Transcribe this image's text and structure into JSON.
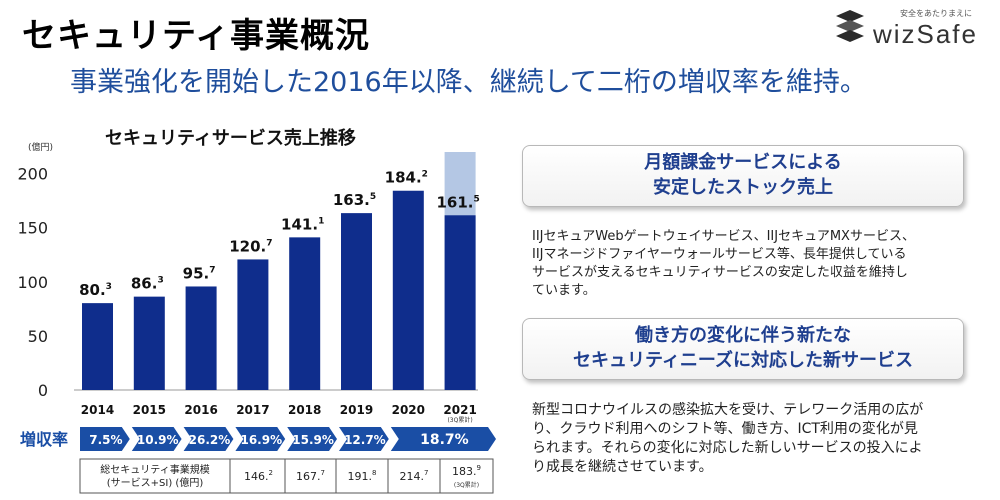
{
  "page": {
    "title": "セキュリティ事業概況",
    "subtitle": "事業強化を開始した2016年以降、継続して二桁の増収率を維持。"
  },
  "logo": {
    "tagline": "安全をあたりまえに",
    "name": "wizSafe",
    "icon": "wizsafe-logo-icon"
  },
  "chart_data": {
    "type": "bar",
    "title": "セキュリティサービス売上推移",
    "ylabel": "(億円)",
    "ylim": [
      0,
      220
    ],
    "yticks": [
      0,
      50,
      100,
      150,
      200
    ],
    "categories": [
      "2014",
      "2015",
      "2016",
      "2017",
      "2018",
      "2019",
      "2020",
      "2021"
    ],
    "category_note": "(3Q累計)",
    "values": [
      80.3,
      86.3,
      95.7,
      120.7,
      141.1,
      163.5,
      184.2,
      161.5
    ],
    "value_labels": [
      {
        "main": "80.",
        "sup": "3"
      },
      {
        "main": "86.",
        "sup": "3"
      },
      {
        "main": "95.",
        "sup": "7"
      },
      {
        "main": "120.",
        "sup": "7"
      },
      {
        "main": "141.",
        "sup": "1"
      },
      {
        "main": "163.",
        "sup": "5"
      },
      {
        "main": "184.",
        "sup": "2"
      },
      {
        "main": "161.",
        "sup": "5"
      }
    ],
    "forecast_extension": {
      "category": "2021",
      "top_value": 220
    },
    "bar_color": "#0f2d8c",
    "forecast_color": "#b4c7e4",
    "growth": {
      "label": "増収率",
      "values": [
        "7.5%",
        "10.9%",
        "26.2%",
        "16.9%",
        "15.9%",
        "12.7%",
        "18.7%"
      ],
      "color": "#1a4ea5"
    },
    "table": {
      "row_label_line1": "総セキュリティ事業規模",
      "row_label_line2": "(サービス+SI)  (億円)",
      "cells": [
        {
          "main": "146.",
          "sup": "2",
          "note": ""
        },
        {
          "main": "167.",
          "sup": "7",
          "note": ""
        },
        {
          "main": "191.",
          "sup": "8",
          "note": ""
        },
        {
          "main": "214.",
          "sup": "7",
          "note": ""
        },
        {
          "main": "183.",
          "sup": "9",
          "note": "(3Q累計)"
        }
      ]
    }
  },
  "callouts": [
    {
      "title_line1": "月額課金サービスによる",
      "title_line2": "安定したストック売上",
      "body": [
        "IIJセキュアWebゲートウェイサービス、IIJセキュアMXサービス、",
        "IIJマネージドファイヤーウォールサービス等、長年提供している",
        "サービスが支えるセキュリティサービスの安定した収益を維持し",
        "ています。"
      ]
    },
    {
      "title_line1": "働き方の変化に伴う新たな",
      "title_line2": "セキュリティニーズに対応した新サービス",
      "body": [
        "新型コロナウイルスの感染拡大を受け、テレワーク活用の広が",
        "り、クラウド利用へのシフト等、働き方、ICT利用の変化が見",
        "られます。それらの変化に対応した新しいサービスの投入によ",
        "り成長を継続させています。"
      ]
    }
  ]
}
